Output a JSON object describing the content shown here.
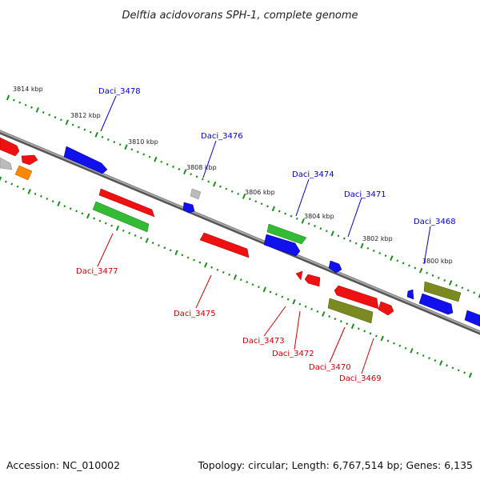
{
  "title": "Delftia acidovorans SPH-1, complete genome",
  "footer": {
    "accession": "Accession: NC_010002",
    "topology": "Topology: circular; Length: 6,767,514 bp; Genes: 6,135"
  },
  "colors": {
    "backbone": "#888888",
    "tick": "#1f8a1f",
    "label_top": "#0000cc",
    "label_bottom": "#cc0000",
    "red": "#ee1111",
    "blue": "#1111ee",
    "green": "#33bb33",
    "olive": "#7a8a20",
    "gray": "#bbbbbb",
    "orange": "#ff8800"
  },
  "scale_labels": [
    "3814 kbp",
    "3812 kbp",
    "3810 kbp",
    "3808 kbp",
    "3806 kbp",
    "3804 kbp",
    "3802 kbp",
    "3800 kbp"
  ],
  "gene_labels": [
    {
      "text": "Daci_3478",
      "side": "top"
    },
    {
      "text": "Daci_3476",
      "side": "top"
    },
    {
      "text": "Daci_3474",
      "side": "top"
    },
    {
      "text": "Daci_3471",
      "side": "top"
    },
    {
      "text": "Daci_3468",
      "side": "top"
    },
    {
      "text": "Daci_3477",
      "side": "bottom"
    },
    {
      "text": "Daci_3475",
      "side": "bottom"
    },
    {
      "text": "Daci_3473",
      "side": "bottom"
    },
    {
      "text": "Daci_3472",
      "side": "bottom"
    },
    {
      "text": "Daci_3470",
      "side": "bottom"
    },
    {
      "text": "Daci_3469",
      "side": "bottom"
    }
  ]
}
